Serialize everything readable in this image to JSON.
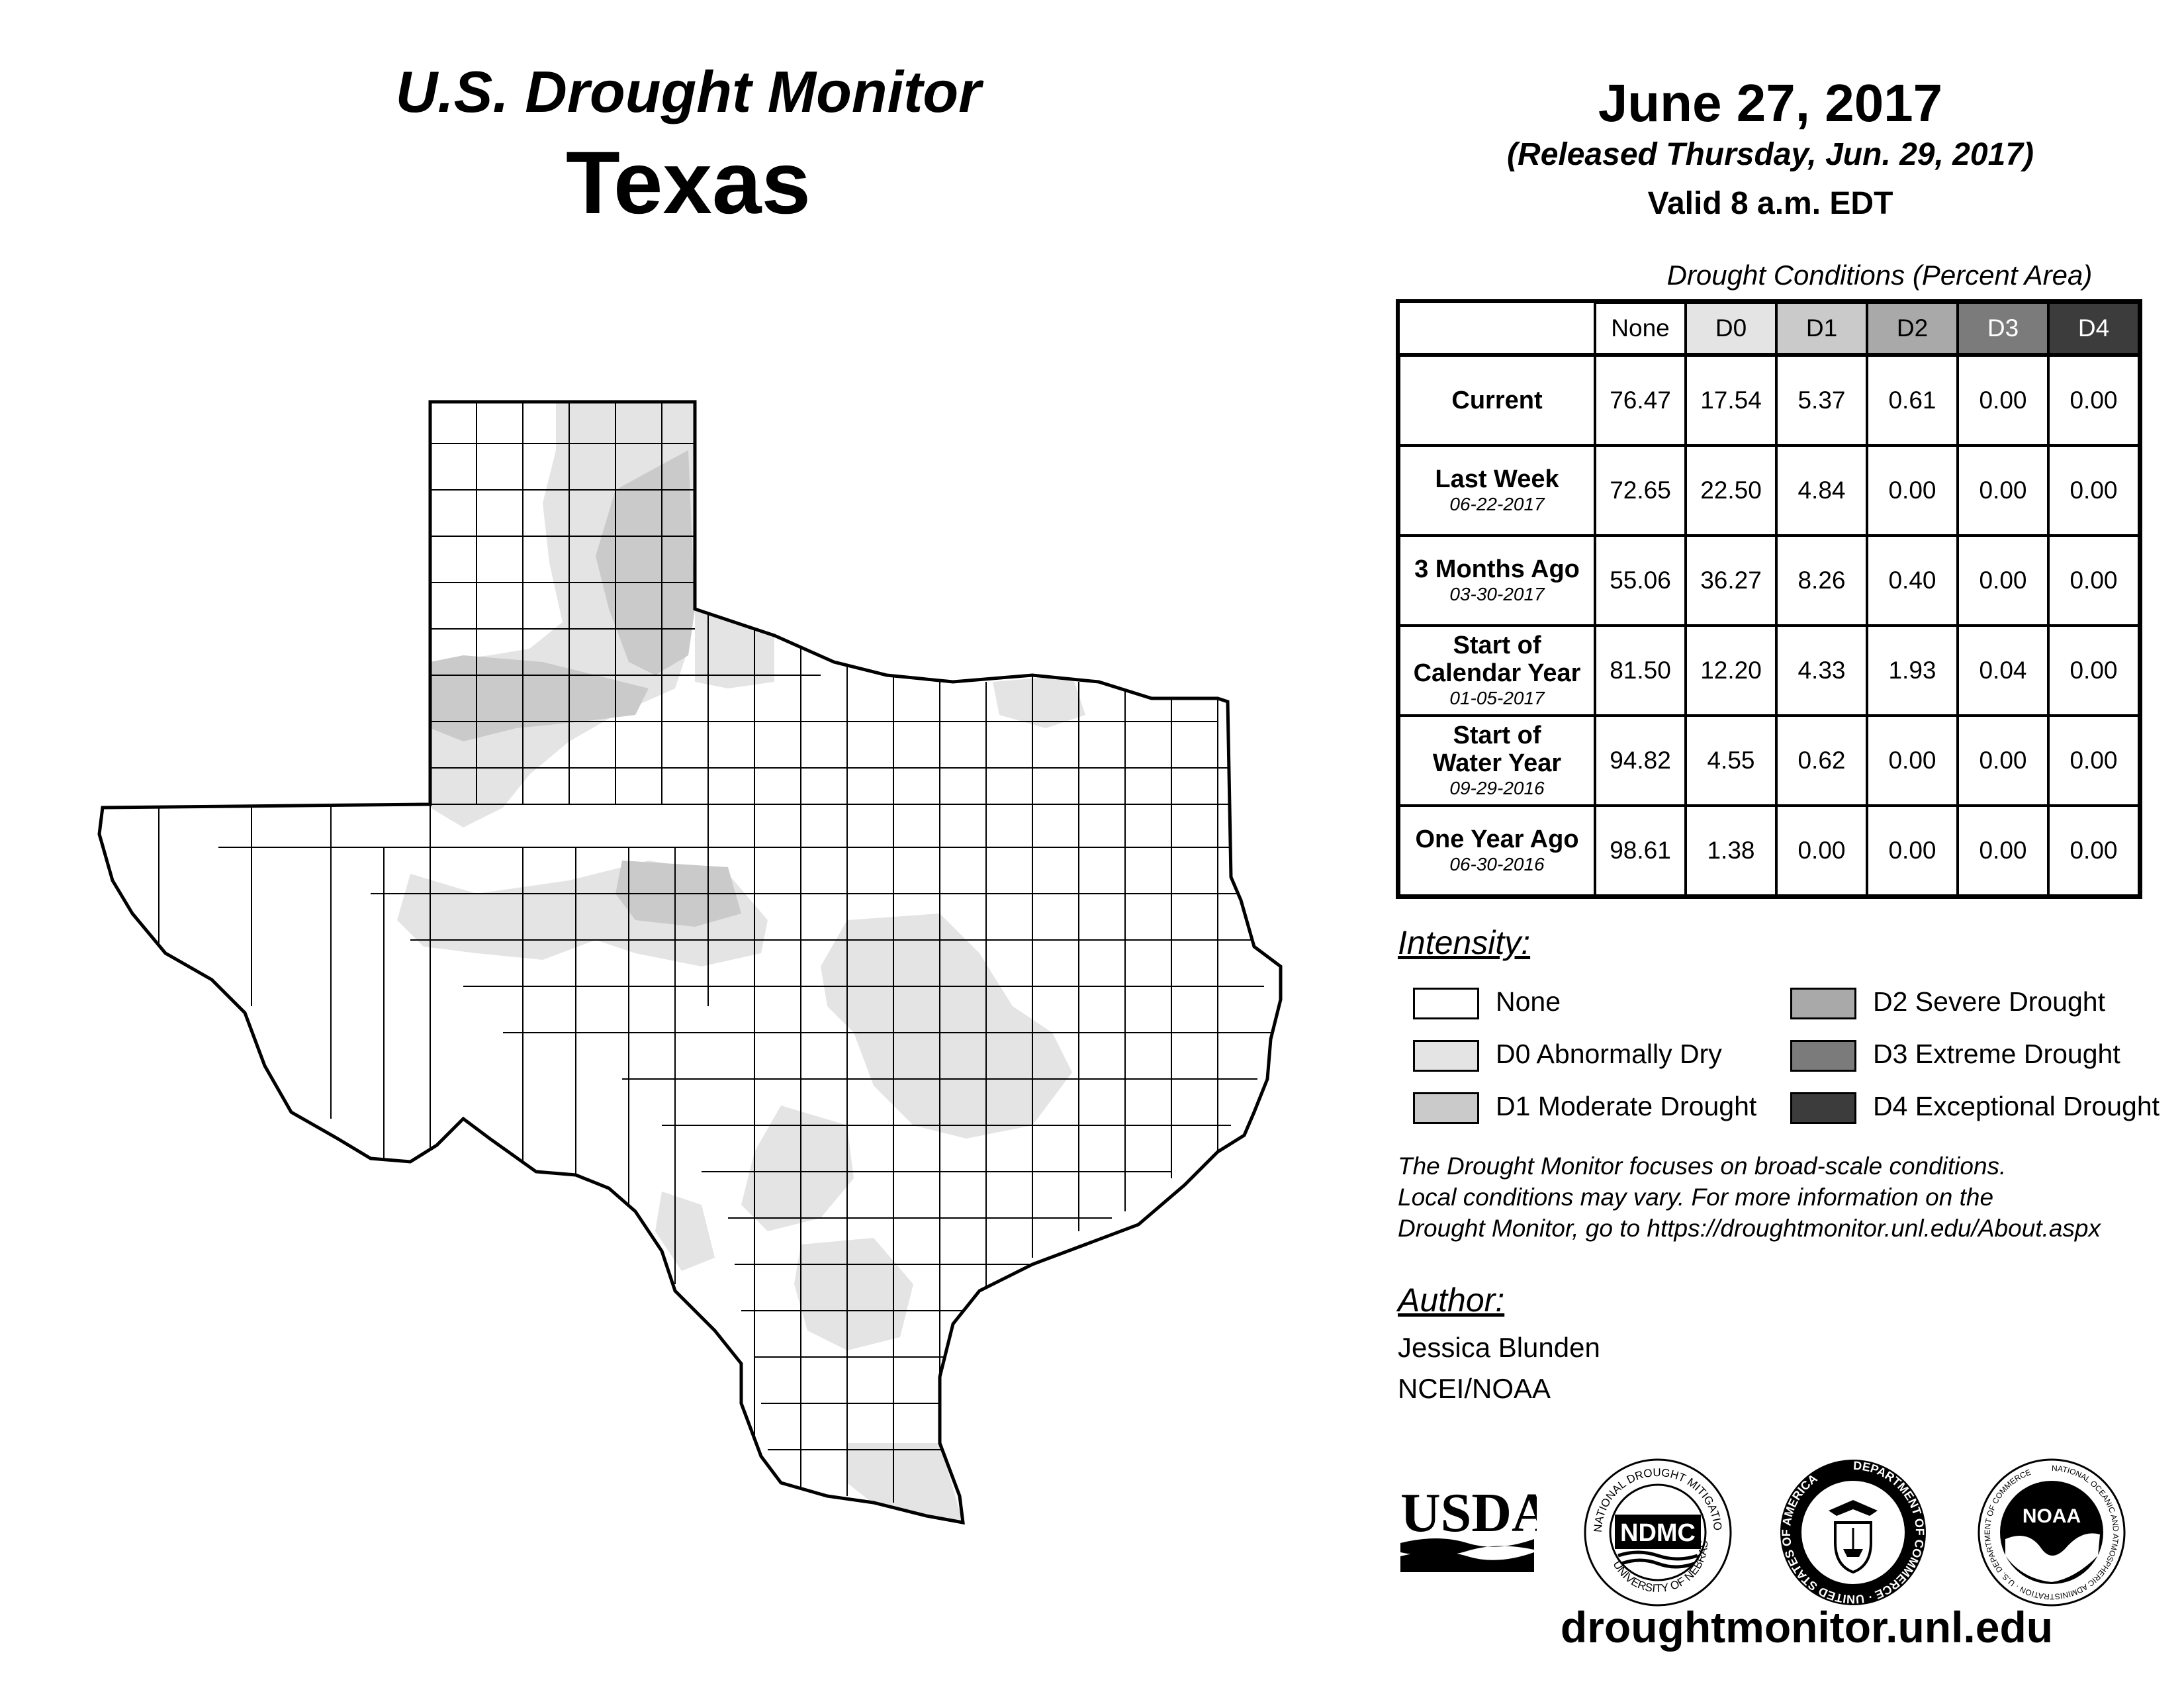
{
  "header": {
    "monitor_title": "U.S. Drought Monitor",
    "region": "Texas",
    "date": "June 27, 2017",
    "released": "(Released Thursday, Jun. 29, 2017)",
    "valid": "Valid 8 a.m. EDT"
  },
  "table": {
    "title": "Drought Conditions (Percent Area)",
    "columns": [
      "None",
      "D0",
      "D1",
      "D2",
      "D3",
      "D4"
    ],
    "column_colors": [
      "#ffffff",
      "#e4e4e4",
      "#cacaca",
      "#a9a9a9",
      "#7b7b7b",
      "#3c3c3c"
    ],
    "column_text_colors": [
      "#000000",
      "#000000",
      "#000000",
      "#000000",
      "#ffffff",
      "#ffffff"
    ],
    "rows": [
      {
        "label_lines": [
          "Current"
        ],
        "date": "",
        "values": [
          "76.47",
          "17.54",
          "5.37",
          "0.61",
          "0.00",
          "0.00"
        ]
      },
      {
        "label_lines": [
          "Last Week"
        ],
        "date": "06-22-2017",
        "values": [
          "72.65",
          "22.50",
          "4.84",
          "0.00",
          "0.00",
          "0.00"
        ]
      },
      {
        "label_lines": [
          "3 Months Ago"
        ],
        "date": "03-30-2017",
        "values": [
          "55.06",
          "36.27",
          "8.26",
          "0.40",
          "0.00",
          "0.00"
        ]
      },
      {
        "label_lines": [
          "Start of",
          "Calendar Year"
        ],
        "date": "01-05-2017",
        "values": [
          "81.50",
          "12.20",
          "4.33",
          "1.93",
          "0.04",
          "0.00"
        ]
      },
      {
        "label_lines": [
          "Start of",
          "Water Year"
        ],
        "date": "09-29-2016",
        "values": [
          "94.82",
          "4.55",
          "0.62",
          "0.00",
          "0.00",
          "0.00"
        ]
      },
      {
        "label_lines": [
          "One Year Ago"
        ],
        "date": "06-30-2016",
        "values": [
          "98.61",
          "1.38",
          "0.00",
          "0.00",
          "0.00",
          "0.00"
        ]
      }
    ]
  },
  "legend": {
    "title": "Intensity:",
    "items": [
      {
        "label": "None",
        "color": "#ffffff"
      },
      {
        "label": "D0 Abnormally Dry",
        "color": "#e4e4e4"
      },
      {
        "label": "D1 Moderate Drought",
        "color": "#cacaca"
      },
      {
        "label": "D2 Severe Drought",
        "color": "#a9a9a9"
      },
      {
        "label": "D3 Extreme Drought",
        "color": "#7b7b7b"
      },
      {
        "label": "D4 Exceptional Drought",
        "color": "#3c3c3c"
      }
    ]
  },
  "note": [
    "The Drought Monitor focuses on broad-scale conditions.",
    "Local conditions may vary. For more information on the",
    "Drought Monitor, go to https://droughtmonitor.unl.edu/About.aspx"
  ],
  "author": {
    "heading": "Author:",
    "name": "Jessica Blunden",
    "org": "NCEI/NOAA"
  },
  "logos": {
    "usda": "USDA",
    "ndmc": "NDMC",
    "ndmc_ring_top": "NATIONAL DROUGHT MITIGATION CENTER",
    "ndmc_ring_bottom": "UNIVERSITY OF NEBRASKA",
    "doc_ring": "DEPARTMENT OF COMMERCE · UNITED STATES OF AMERICA",
    "noaa": "NOAA",
    "noaa_ring": "NATIONAL OCEANIC AND ATMOSPHERIC ADMINISTRATION · U.S. DEPARTMENT OF COMMERCE"
  },
  "footer_url": "droughtmonitor.unl.edu"
}
